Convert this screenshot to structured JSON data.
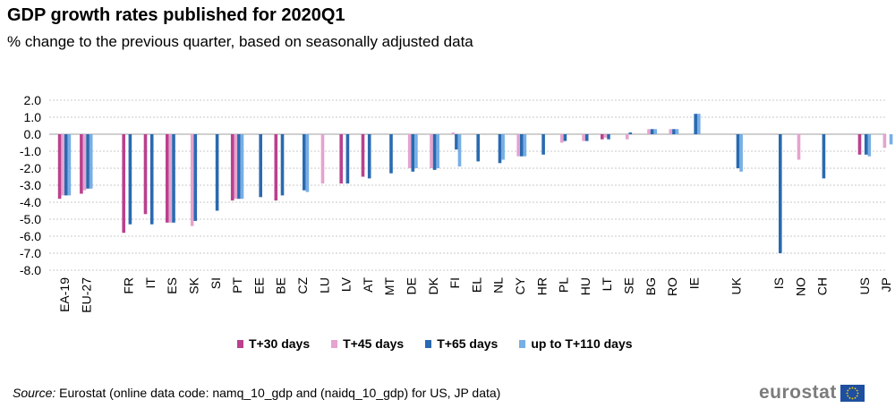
{
  "title": "GDP growth rates published for 2020Q1",
  "subtitle": "% change to the previous quarter, based on seasonally adjusted data",
  "source_label": "Source:",
  "source_text": " Eurostat (online data code: namq_10_gdp and (naidq_10_gdp) for US, JP data)",
  "logo_text": "eurostat",
  "colors": {
    "T+30 days": "#b9418e",
    "T+45 days": "#e5a3cf",
    "T+65 days": "#2a6ab0",
    "up to T+110 days": "#77aee5",
    "grid": "#c8c8c8",
    "flag": "#1f4fa0",
    "stars": "#ffd400"
  },
  "chart_data": {
    "type": "bar",
    "title": "GDP growth rates published for 2020Q1",
    "subtitle": "% change to the previous quarter, based on seasonally adjusted data",
    "ylim": [
      -8,
      2
    ],
    "yticks": [
      "2.0",
      "1.0",
      "0.0",
      "-1.0",
      "-2.0",
      "-3.0",
      "-4.0",
      "-5.0",
      "-6.0",
      "-7.0",
      "-8.0"
    ],
    "grid": true,
    "legend_position": "bottom",
    "categories": [
      "EA-19",
      "EU-27",
      "FR",
      "IT",
      "ES",
      "SK",
      "SI",
      "PT",
      "EE",
      "BE",
      "CZ",
      "LU",
      "LV",
      "AT",
      "MT",
      "DE",
      "DK",
      "FI",
      "EL",
      "NL",
      "CY",
      "HR",
      "PL",
      "HU",
      "LT",
      "SE",
      "BG",
      "RO",
      "IE",
      "UK",
      "IS",
      "NO",
      "CH",
      "US",
      "JP"
    ],
    "group_breaks_before": [
      "FR",
      "UK",
      "IS",
      "US"
    ],
    "series": [
      {
        "name": "T+30 days",
        "values": [
          -3.8,
          -3.5,
          -5.8,
          -4.7,
          -5.2,
          null,
          null,
          -3.9,
          null,
          -3.9,
          null,
          null,
          -2.9,
          -2.5,
          null,
          null,
          null,
          null,
          null,
          null,
          null,
          null,
          null,
          null,
          -0.3,
          null,
          null,
          null,
          null,
          null,
          null,
          null,
          null,
          -1.2,
          null
        ]
      },
      {
        "name": "T+45 days",
        "values": [
          -3.6,
          -3.3,
          null,
          null,
          -5.2,
          -5.4,
          null,
          -3.8,
          null,
          null,
          null,
          -2.9,
          null,
          null,
          null,
          -2.0,
          -2.0,
          0.1,
          null,
          null,
          -1.3,
          null,
          -0.5,
          -0.4,
          -0.2,
          -0.3,
          0.3,
          0.3,
          null,
          null,
          null,
          -1.5,
          null,
          null,
          -0.8
        ]
      },
      {
        "name": "T+65 days",
        "values": [
          -3.6,
          -3.2,
          -5.3,
          -5.3,
          -5.2,
          -5.1,
          -4.5,
          -3.8,
          -3.7,
          -3.6,
          -3.3,
          null,
          -2.9,
          -2.6,
          -2.3,
          -2.2,
          -2.1,
          -0.9,
          -1.6,
          -1.7,
          -1.3,
          -1.2,
          -0.4,
          -0.4,
          -0.3,
          0.1,
          0.3,
          0.3,
          1.2,
          -2.0,
          -7.0,
          null,
          -2.6,
          -1.2,
          null
        ]
      },
      {
        "name": "up to T+110 days",
        "values": [
          -3.6,
          -3.2,
          null,
          null,
          null,
          null,
          null,
          -3.8,
          null,
          null,
          -3.4,
          null,
          null,
          null,
          null,
          -2.0,
          -2.0,
          -1.9,
          null,
          -1.5,
          -1.3,
          null,
          null,
          null,
          null,
          null,
          0.3,
          0.3,
          1.2,
          -2.2,
          null,
          null,
          null,
          -1.3,
          -0.6
        ]
      }
    ]
  }
}
